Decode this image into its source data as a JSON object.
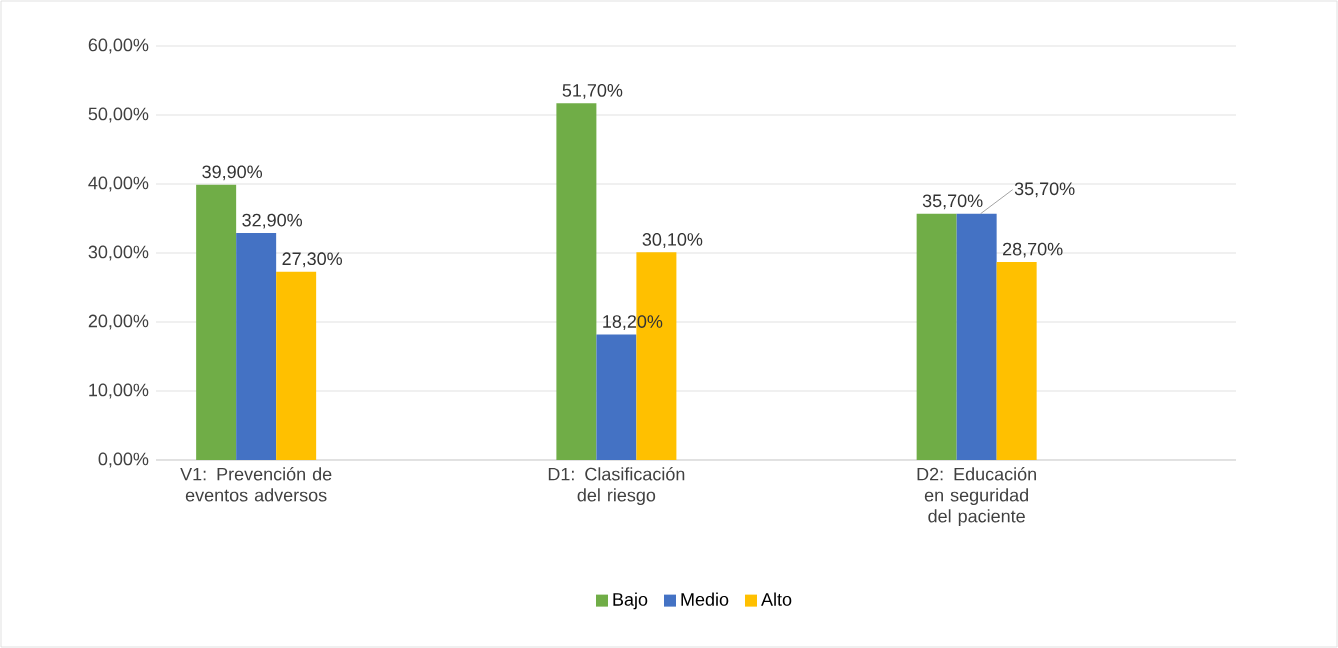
{
  "chart_data": {
    "type": "bar",
    "categories": [
      "V1: Prevención de eventos adversos",
      "D1: Clasificación del riesgo",
      "D2: Educación en seguridad del paciente"
    ],
    "series": [
      {
        "name": "Bajo",
        "color": "#70ad47",
        "values": [
          39.9,
          51.7,
          35.7
        ],
        "value_labels": [
          "39,90%",
          "51,70%",
          "35,70%"
        ]
      },
      {
        "name": "Medio",
        "color": "#4472c4",
        "values": [
          32.9,
          18.2,
          35.7
        ],
        "value_labels": [
          "32,90%",
          "18,20%",
          "35,70%"
        ]
      },
      {
        "name": "Alto",
        "color": "#ffc000",
        "values": [
          27.3,
          30.1,
          28.7
        ],
        "value_labels": [
          "27,30%",
          "30,10%",
          "28,70%"
        ]
      }
    ],
    "ylim": [
      0,
      60
    ],
    "yticks": [
      {
        "value": 0,
        "label": "0,00%"
      },
      {
        "value": 10,
        "label": "10,00%"
      },
      {
        "value": 20,
        "label": "20,00%"
      },
      {
        "value": 30,
        "label": "30,00%"
      },
      {
        "value": 40,
        "label": "40,00%"
      },
      {
        "value": 50,
        "label": "50,00%"
      },
      {
        "value": 60,
        "label": "60,00%"
      }
    ],
    "grid": "y",
    "legend": "bottom"
  }
}
